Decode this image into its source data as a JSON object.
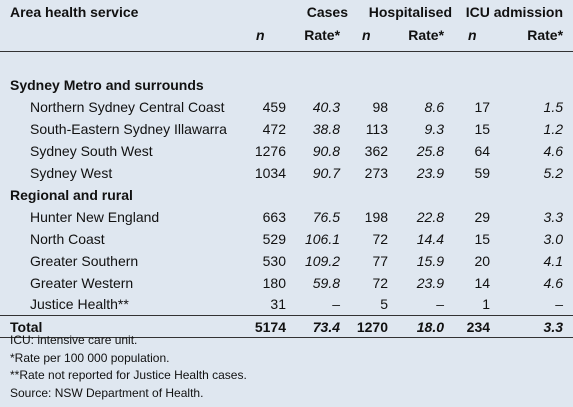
{
  "header": {
    "area_label": "Area health service",
    "groups": [
      "Cases",
      "Hospitalised",
      "ICU admission"
    ],
    "sub": {
      "n": "n",
      "rate": "Rate*"
    }
  },
  "sections": [
    {
      "title": "Sydney Metro and surrounds",
      "rows": [
        {
          "area": "Northern Sydney Central Coast",
          "cases_n": "459",
          "cases_rate": "40.3",
          "hosp_n": "98",
          "hosp_rate": "8.6",
          "icu_n": "17",
          "icu_rate": "1.5"
        },
        {
          "area": "South-Eastern Sydney Illawarra",
          "cases_n": "472",
          "cases_rate": "38.8",
          "hosp_n": "113",
          "hosp_rate": "9.3",
          "icu_n": "15",
          "icu_rate": "1.2"
        },
        {
          "area": "Sydney South West",
          "cases_n": "1276",
          "cases_rate": "90.8",
          "hosp_n": "362",
          "hosp_rate": "25.8",
          "icu_n": "64",
          "icu_rate": "4.6"
        },
        {
          "area": "Sydney West",
          "cases_n": "1034",
          "cases_rate": "90.7",
          "hosp_n": "273",
          "hosp_rate": "23.9",
          "icu_n": "59",
          "icu_rate": "5.2"
        }
      ]
    },
    {
      "title": "Regional and rural",
      "rows": [
        {
          "area": "Hunter New England",
          "cases_n": "663",
          "cases_rate": "76.5",
          "hosp_n": "198",
          "hosp_rate": "22.8",
          "icu_n": "29",
          "icu_rate": "3.3"
        },
        {
          "area": "North Coast",
          "cases_n": "529",
          "cases_rate": "106.1",
          "hosp_n": "72",
          "hosp_rate": "14.4",
          "icu_n": "15",
          "icu_rate": "3.0"
        },
        {
          "area": "Greater Southern",
          "cases_n": "530",
          "cases_rate": "109.2",
          "hosp_n": "77",
          "hosp_rate": "15.9",
          "icu_n": "20",
          "icu_rate": "4.1"
        },
        {
          "area": "Greater Western",
          "cases_n": "180",
          "cases_rate": "59.8",
          "hosp_n": "72",
          "hosp_rate": "23.9",
          "icu_n": "14",
          "icu_rate": "4.6"
        },
        {
          "area": "Justice Health**",
          "cases_n": "31",
          "cases_rate": "–",
          "hosp_n": "5",
          "hosp_rate": "–",
          "icu_n": "1",
          "icu_rate": "–"
        }
      ]
    }
  ],
  "total": {
    "label": "Total",
    "cases_n": "5174",
    "cases_rate": "73.4",
    "hosp_n": "1270",
    "hosp_rate": "18.0",
    "icu_n": "234",
    "icu_rate": "3.3"
  },
  "footnotes": [
    "ICU: intensive care unit.",
    "*Rate per 100 000 population.",
    "**Rate not reported for Justice Health cases.",
    "Source: NSW Department of Health."
  ]
}
